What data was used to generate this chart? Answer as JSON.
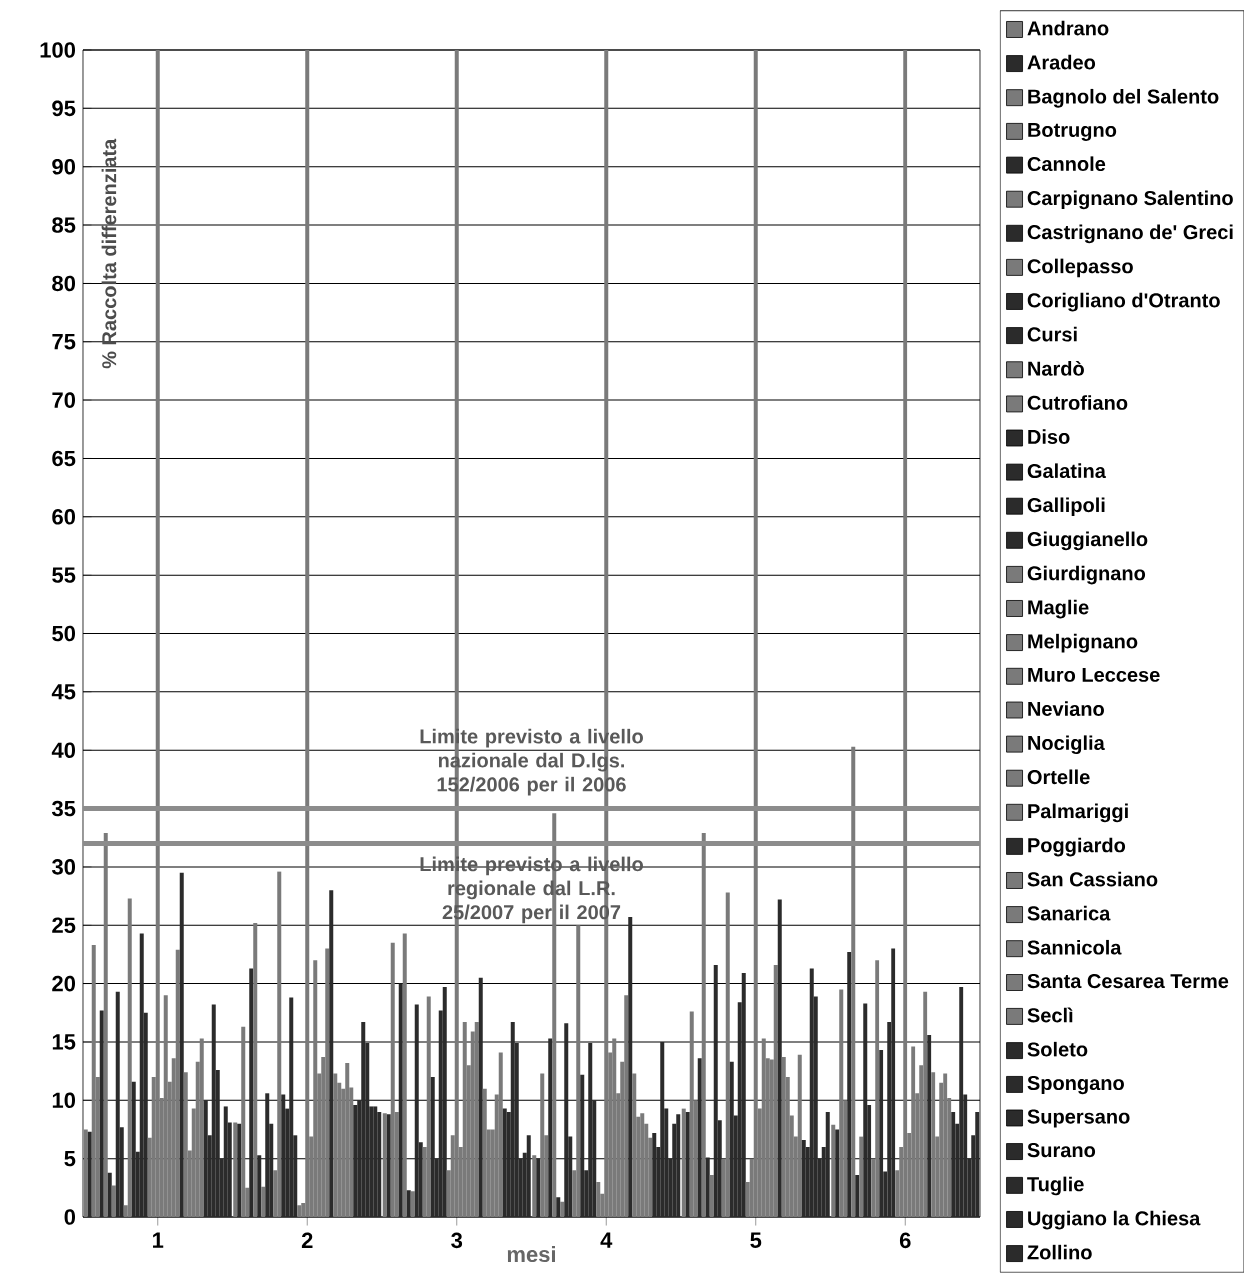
{
  "chart_data": {
    "type": "bar",
    "xlabel": "mesi",
    "ylabel": "% Raccolta differenziata",
    "categories": [
      "1",
      "2",
      "3",
      "4",
      "5",
      "6"
    ],
    "ylim": [
      0,
      100
    ],
    "yticks": [
      0,
      5,
      10,
      15,
      20,
      25,
      30,
      35,
      40,
      45,
      50,
      55,
      60,
      65,
      70,
      75,
      80,
      85,
      90,
      95,
      100
    ],
    "grid": "y",
    "legend": "right",
    "ref_lines": [
      {
        "axis": "y",
        "value": 35,
        "label": "Limite previsto a livello nazionale dal D.lgs. 152/2006 per il 2006",
        "color": "#8c8c8c"
      },
      {
        "axis": "y",
        "value": 32,
        "label": "Limite previsto a livello regionale dal L.R. 25/2007 per il 2007",
        "color": "#8c8c8c"
      }
    ],
    "series": [
      {
        "name": "Andrano",
        "color": "#7a7a7a",
        "values": [
          7.5,
          8.1,
          8.9,
          5.3,
          9.3,
          7.9
        ]
      },
      {
        "name": "Aradeo",
        "color": "#2b2b2b",
        "values": [
          7.3,
          8,
          8.8,
          5,
          9,
          7.5
        ]
      },
      {
        "name": "Bagnolo del Salento",
        "color": "#7a7a7a",
        "values": [
          23.3,
          16.3,
          23.5,
          12.3,
          17.6,
          19.5
        ]
      },
      {
        "name": "Botrugno",
        "color": "#7a7a7a",
        "values": [
          12,
          2.5,
          9,
          7,
          10,
          10
        ]
      },
      {
        "name": "Cannole",
        "color": "#2b2b2b",
        "values": [
          17.7,
          21.3,
          20,
          15.3,
          13.6,
          22.7
        ]
      },
      {
        "name": "Carpignano Salentino",
        "color": "#7a7a7a",
        "values": [
          32.9,
          25.2,
          24.3,
          34.6,
          32.9,
          40.3
        ]
      },
      {
        "name": "Castrignano de' Greci",
        "color": "#2b2b2b",
        "values": [
          3.8,
          5.3,
          2.3,
          1.7,
          5.1,
          3.6
        ]
      },
      {
        "name": "Collepasso",
        "color": "#7a7a7a",
        "values": [
          2.7,
          2.6,
          2.2,
          1.3,
          3.6,
          6.9
        ]
      },
      {
        "name": "Corigliano d'Otranto",
        "color": "#2b2b2b",
        "values": [
          19.3,
          10.6,
          18.2,
          16.6,
          21.6,
          18.3
        ]
      },
      {
        "name": "Cursi",
        "color": "#2b2b2b",
        "values": [
          7.7,
          8,
          6.4,
          6.9,
          8.3,
          9.6
        ]
      },
      {
        "name": "Nardò",
        "color": "#7a7a7a",
        "values": [
          1,
          4,
          6,
          4,
          5,
          5
        ]
      },
      {
        "name": "Cutrofiano",
        "color": "#7a7a7a",
        "values": [
          27.3,
          29.6,
          18.9,
          25,
          27.8,
          22
        ]
      },
      {
        "name": "Diso",
        "color": "#2b2b2b",
        "values": [
          11.6,
          10.5,
          12,
          12.2,
          13.3,
          14.3
        ]
      },
      {
        "name": "Galatina",
        "color": "#2b2b2b",
        "values": [
          5.6,
          9.3,
          5,
          4,
          8.7,
          3.9
        ]
      },
      {
        "name": "Gallipoli",
        "color": "#2b2b2b",
        "values": [
          24.3,
          18.8,
          17.7,
          14.9,
          18.4,
          16.7
        ]
      },
      {
        "name": "Giuggianello",
        "color": "#2b2b2b",
        "values": [
          17.5,
          7,
          19.7,
          10,
          20.9,
          23
        ]
      },
      {
        "name": "Giurdignano",
        "color": "#7a7a7a",
        "values": [
          6.8,
          1,
          4,
          3,
          3,
          4
        ]
      },
      {
        "name": "Maglie",
        "color": "#7a7a7a",
        "values": [
          12,
          1.2,
          7,
          2,
          5,
          6
        ]
      },
      {
        "name": "Melpignano",
        "color": "#7a7a7a",
        "values": [
          100,
          100,
          100,
          100,
          100,
          100
        ]
      },
      {
        "name": "Muro Leccese",
        "color": "#7a7a7a",
        "values": [
          10.2,
          6.9,
          6,
          14.1,
          9.3,
          7.2
        ]
      },
      {
        "name": "Neviano",
        "color": "#7a7a7a",
        "values": [
          19,
          22,
          16.7,
          15.3,
          15.3,
          14.6
        ]
      },
      {
        "name": "Nociglia",
        "color": "#7a7a7a",
        "values": [
          11.6,
          12.3,
          13,
          10.6,
          13.6,
          10.6
        ]
      },
      {
        "name": "Ortelle",
        "color": "#7a7a7a",
        "values": [
          13.6,
          13.7,
          15.9,
          13.3,
          13.5,
          13
        ]
      },
      {
        "name": "Palmariggi",
        "color": "#7a7a7a",
        "values": [
          22.9,
          23,
          16.7,
          19,
          21.6,
          19.3
        ]
      },
      {
        "name": "Poggiardo",
        "color": "#2b2b2b",
        "values": [
          29.5,
          28,
          20.5,
          25.7,
          27.2,
          15.6
        ]
      },
      {
        "name": "San Cassiano",
        "color": "#7a7a7a",
        "values": [
          12.4,
          12.3,
          11,
          12.3,
          13.7,
          12.4
        ]
      },
      {
        "name": "Sanarica",
        "color": "#7a7a7a",
        "values": [
          5.7,
          11.5,
          7.5,
          8.6,
          12,
          6.9
        ]
      },
      {
        "name": "Sannicola",
        "color": "#7a7a7a",
        "values": [
          9.3,
          11,
          7.5,
          8.9,
          8.7,
          11.5
        ]
      },
      {
        "name": "Santa Cesarea Terme",
        "color": "#7a7a7a",
        "values": [
          13.3,
          13.2,
          10.5,
          8,
          6.9,
          12.3
        ]
      },
      {
        "name": "Seclì",
        "color": "#7a7a7a",
        "values": [
          15.3,
          11.1,
          14.1,
          6.8,
          13.9,
          10.2
        ]
      },
      {
        "name": "Soleto",
        "color": "#2b2b2b",
        "values": [
          10,
          9.6,
          9.3,
          7.2,
          6.6,
          9
        ]
      },
      {
        "name": "Spongano",
        "color": "#2b2b2b",
        "values": [
          7,
          10,
          9,
          6,
          6,
          8
        ]
      },
      {
        "name": "Supersano",
        "color": "#2b2b2b",
        "values": [
          18.2,
          16.7,
          16.7,
          15,
          21.3,
          19.7
        ]
      },
      {
        "name": "Surano",
        "color": "#2b2b2b",
        "values": [
          12.6,
          14.9,
          14.9,
          9.3,
          18.9,
          10.5
        ]
      },
      {
        "name": "Tuglie",
        "color": "#2b2b2b",
        "values": [
          5,
          9.5,
          5,
          5,
          5,
          5
        ]
      },
      {
        "name": "Uggiano la Chiesa",
        "color": "#2b2b2b",
        "values": [
          9.5,
          9.5,
          5.5,
          8,
          6,
          7
        ]
      },
      {
        "name": "Zollino",
        "color": "#2b2b2b",
        "values": [
          8.1,
          9,
          7,
          8.8,
          9,
          9
        ]
      }
    ]
  }
}
